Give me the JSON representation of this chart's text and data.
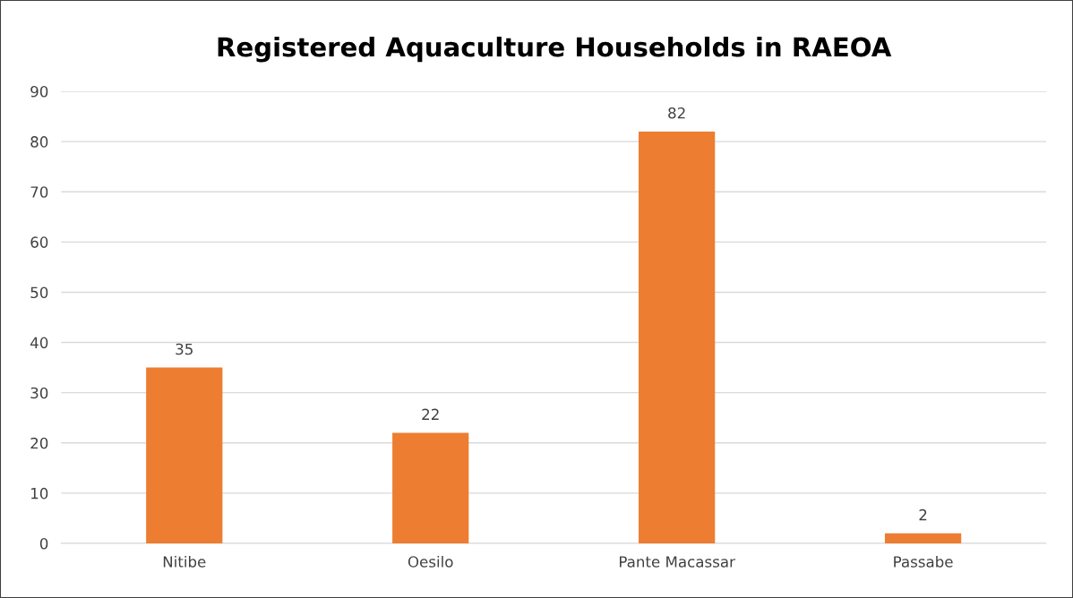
{
  "chart_data": {
    "type": "bar",
    "title": "Registered Aquaculture Households in RAEOA",
    "categories": [
      "Nitibe",
      "Oesilo",
      "Pante Macassar",
      "Passabe"
    ],
    "values": [
      35,
      22,
      82,
      2
    ],
    "color": "#ed7d31",
    "ylim": [
      0,
      90
    ],
    "yticks": [
      0,
      10,
      20,
      30,
      40,
      50,
      60,
      70,
      80,
      90
    ],
    "grid": "y",
    "data_labels": true,
    "legend": false
  }
}
